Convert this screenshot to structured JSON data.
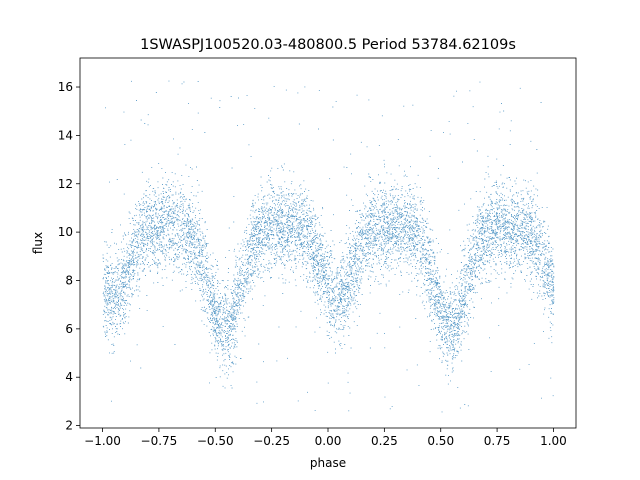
{
  "chart_data": {
    "type": "scatter",
    "title": "1SWASPJ100520.03-480800.5 Period 53784.62109s",
    "xlabel": "phase",
    "ylabel": "flux",
    "xlim": [
      -1.1,
      1.1
    ],
    "ylim": [
      1.9,
      17.2
    ],
    "x_ticks": [
      -1.0,
      -0.75,
      -0.5,
      -0.25,
      0.0,
      0.25,
      0.5,
      0.75,
      1.0
    ],
    "x_tick_labels": [
      "−1.00",
      "−0.75",
      "−0.50",
      "−0.25",
      "0.00",
      "0.25",
      "0.50",
      "0.75",
      "1.00"
    ],
    "y_ticks": [
      2,
      4,
      6,
      8,
      10,
      12,
      14,
      16
    ],
    "y_tick_labels": [
      "2",
      "4",
      "6",
      "8",
      "10",
      "12",
      "14",
      "16"
    ],
    "grid": false,
    "legend": "none",
    "marker_color": "#1f77b4",
    "series": [
      {
        "x_range": [
          -1.0,
          1.0
        ],
        "max_flux": 10.3,
        "primary_minima": [
          -0.46,
          0.54
        ],
        "primary_min_flux": 6.0,
        "secondary_minima": [
          0.04,
          -0.96
        ],
        "secondary_min_flux": 7.2,
        "scatter_sigma": 0.9,
        "outlier_range": [
          2.5,
          16.5
        ]
      }
    ]
  }
}
